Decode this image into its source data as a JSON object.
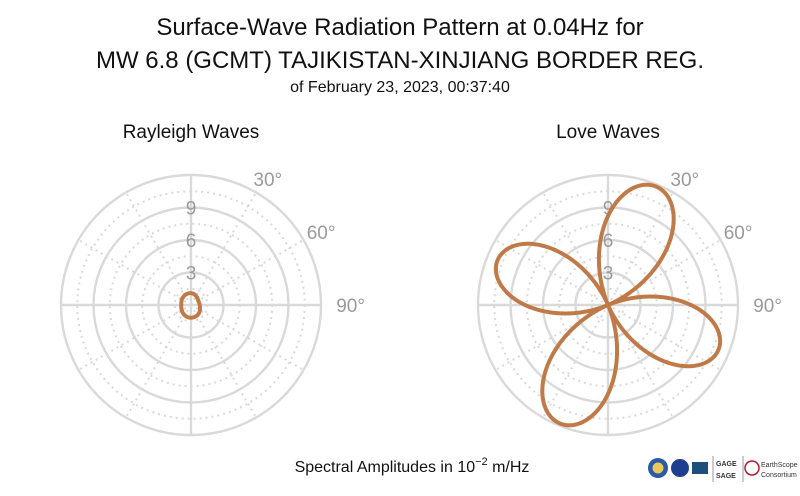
{
  "title": {
    "line1": "Surface-Wave Radiation Pattern at 0.04Hz for",
    "line2": "MW 6.8 (GCMT) TAJIKISTAN-XINJIANG BORDER REG.",
    "line3": "of February 23, 2023, 00:37:40"
  },
  "footer": {
    "text_prefix": "Spectral Amplitudes in 10",
    "exponent": "−2",
    "text_suffix": " m/Hz"
  },
  "logos": {
    "gage_sage_line1": "GAGE",
    "gage_sage_line2": "SAGE",
    "earthscope": "EarthScope",
    "earthscope_sub": "Consortium"
  },
  "colors": {
    "pattern": "#c07a48",
    "grid": "#d9d9d9",
    "axis_labels": "#9a9a9a"
  },
  "chart_data": [
    {
      "type": "polar-line",
      "title": "Rayleigh Waves",
      "radial_ticks": [
        3,
        6,
        9
      ],
      "radial_tick_labels": [
        "3",
        "6",
        "9"
      ],
      "radial_max": 12,
      "angle_ticks": [
        30,
        60,
        90
      ],
      "angle_tick_labels": [
        "30°",
        "60°",
        "90°"
      ],
      "orientation": "clockwise-from-north",
      "series": [
        {
          "theta_deg": [
            0,
            15,
            30,
            45,
            60,
            75,
            90,
            105,
            120,
            135,
            150,
            165,
            180,
            195,
            210,
            225,
            240,
            255,
            270,
            285,
            300,
            315,
            330,
            345
          ],
          "r": [
            1.1,
            1.05,
            0.95,
            0.85,
            0.78,
            0.78,
            0.8,
            0.85,
            0.95,
            1.05,
            1.12,
            1.16,
            1.18,
            1.16,
            1.12,
            1.05,
            0.98,
            0.92,
            0.9,
            0.92,
            0.98,
            1.03,
            1.07,
            1.1
          ]
        }
      ]
    },
    {
      "type": "polar-line",
      "title": "Love Waves",
      "radial_ticks": [
        3,
        6,
        9
      ],
      "radial_tick_labels": [
        "3",
        "6",
        "9"
      ],
      "radial_max": 12,
      "angle_ticks": [
        30,
        60,
        90
      ],
      "angle_tick_labels": [
        "30°",
        "60°",
        "90°"
      ],
      "orientation": "clockwise-from-north",
      "series": [
        {
          "lobes": [
            {
              "center_deg": 22,
              "peak": 11.8
            },
            {
              "center_deg": 112,
              "peak": 11.0
            },
            {
              "center_deg": 202,
              "peak": 11.8
            },
            {
              "center_deg": 292,
              "peak": 11.0
            }
          ]
        }
      ]
    }
  ]
}
